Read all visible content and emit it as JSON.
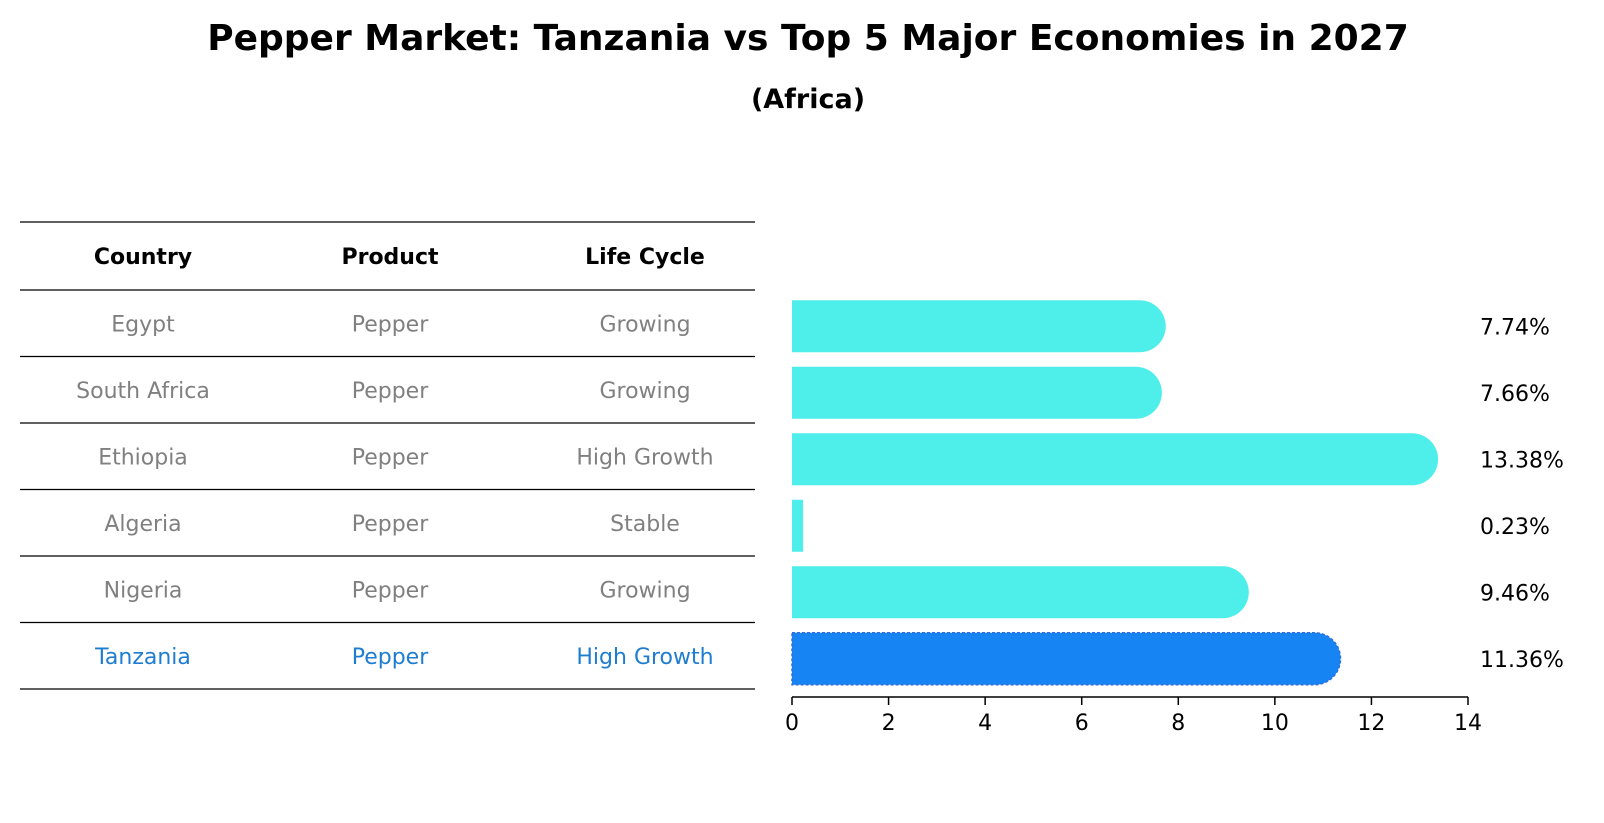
{
  "chart_data": {
    "type": "bar",
    "orientation": "horizontal",
    "title": "Pepper Market: Tanzania vs Top 5 Major Economies in 2027",
    "subtitle": "(Africa)",
    "table": {
      "columns": [
        "Country",
        "Product",
        "Life Cycle"
      ],
      "rows": [
        {
          "country": "Egypt",
          "product": "Pepper",
          "life_cycle": "Growing",
          "highlight": false
        },
        {
          "country": "South Africa",
          "product": "Pepper",
          "life_cycle": "Growing",
          "highlight": false
        },
        {
          "country": "Ethiopia",
          "product": "Pepper",
          "life_cycle": "High Growth",
          "highlight": false
        },
        {
          "country": "Algeria",
          "product": "Pepper",
          "life_cycle": "Stable",
          "highlight": false
        },
        {
          "country": "Nigeria",
          "product": "Pepper",
          "life_cycle": "Growing",
          "highlight": false
        },
        {
          "country": "Tanzania",
          "product": "Pepper",
          "life_cycle": "High Growth",
          "highlight": true
        }
      ]
    },
    "categories": [
      "Egypt",
      "South Africa",
      "Ethiopia",
      "Algeria",
      "Nigeria",
      "Tanzania"
    ],
    "values": [
      7.74,
      7.66,
      13.38,
      0.23,
      9.46,
      11.36
    ],
    "value_labels": [
      "7.74%",
      "7.66%",
      "13.38%",
      "0.23%",
      "9.46%",
      "11.36%"
    ],
    "xlim": [
      0,
      14
    ],
    "xticks": [
      0,
      2,
      4,
      6,
      8,
      10,
      12,
      14
    ],
    "xlabel": "",
    "ylabel": "",
    "grid": false,
    "colors": {
      "bar": "#4EEEEA",
      "highlight_bar": "#1784F4",
      "text_muted": "#808080",
      "text_highlight": "#1F7DD0",
      "text_dark": "#000000",
      "rule": "#000000"
    }
  }
}
